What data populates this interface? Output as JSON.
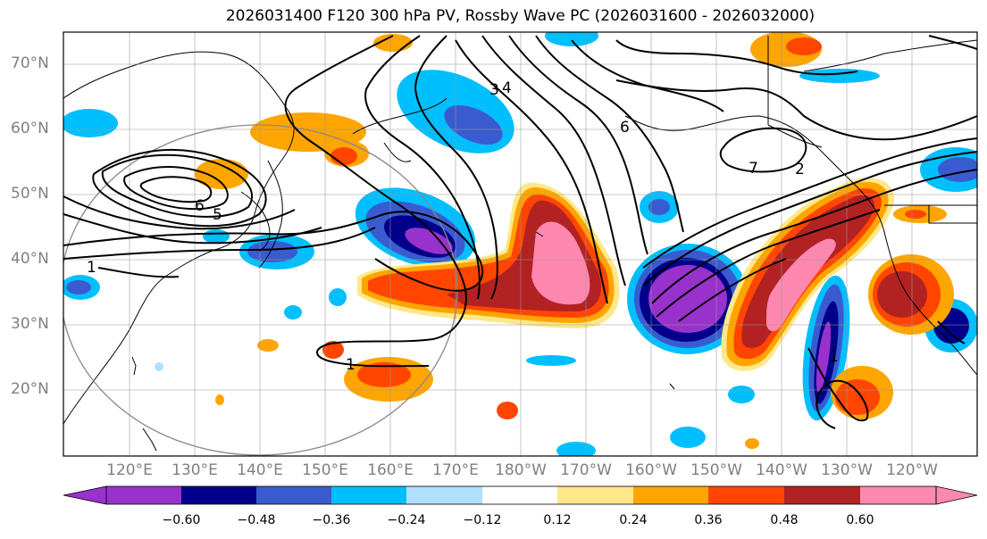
{
  "title": "2026031400 F120 300 hPa PV, Rossby Wave PC (2026031600 - 2026032000)",
  "lat_labels": [
    "70°N",
    "60°N",
    "50°N",
    "40°N",
    "30°N",
    "20°N"
  ],
  "lon_labels": [
    "120°E",
    "130°E",
    "140°E",
    "150°E",
    "160°E",
    "170°E",
    "180°W",
    "170°W",
    "160°W",
    "150°W",
    "140°W",
    "130°W",
    "120°W"
  ],
  "contour_labels": [
    "3",
    "4",
    "6",
    "7",
    "6",
    "5",
    "1",
    "1",
    "1",
    "2"
  ],
  "colorbar": {
    "tick_labels": [
      "−0.60",
      "−0.48",
      "−0.36",
      "−0.24",
      "−0.12",
      "0.12",
      "0.24",
      "0.36",
      "0.48",
      "0.60"
    ],
    "colors": [
      "#9932cc",
      "#00008b",
      "#3a5bcf",
      "#00bfff",
      "#b0e0ff",
      "#ffffff",
      "#ffe88a",
      "#ffa500",
      "#ff4500",
      "#b22222",
      "#ff88b0"
    ]
  },
  "chart_data": {
    "type": "heatmap",
    "title": "2026031400 F120 300 hPa PV, Rossby Wave PC (2026031600 - 2026032000)",
    "lon_range": [
      "110°E",
      "110°W"
    ],
    "lat_range": [
      10,
      75
    ],
    "levels": [
      -0.6,
      -0.48,
      -0.36,
      -0.24,
      -0.12,
      0.12,
      0.24,
      0.36,
      0.48,
      0.6
    ]
  }
}
